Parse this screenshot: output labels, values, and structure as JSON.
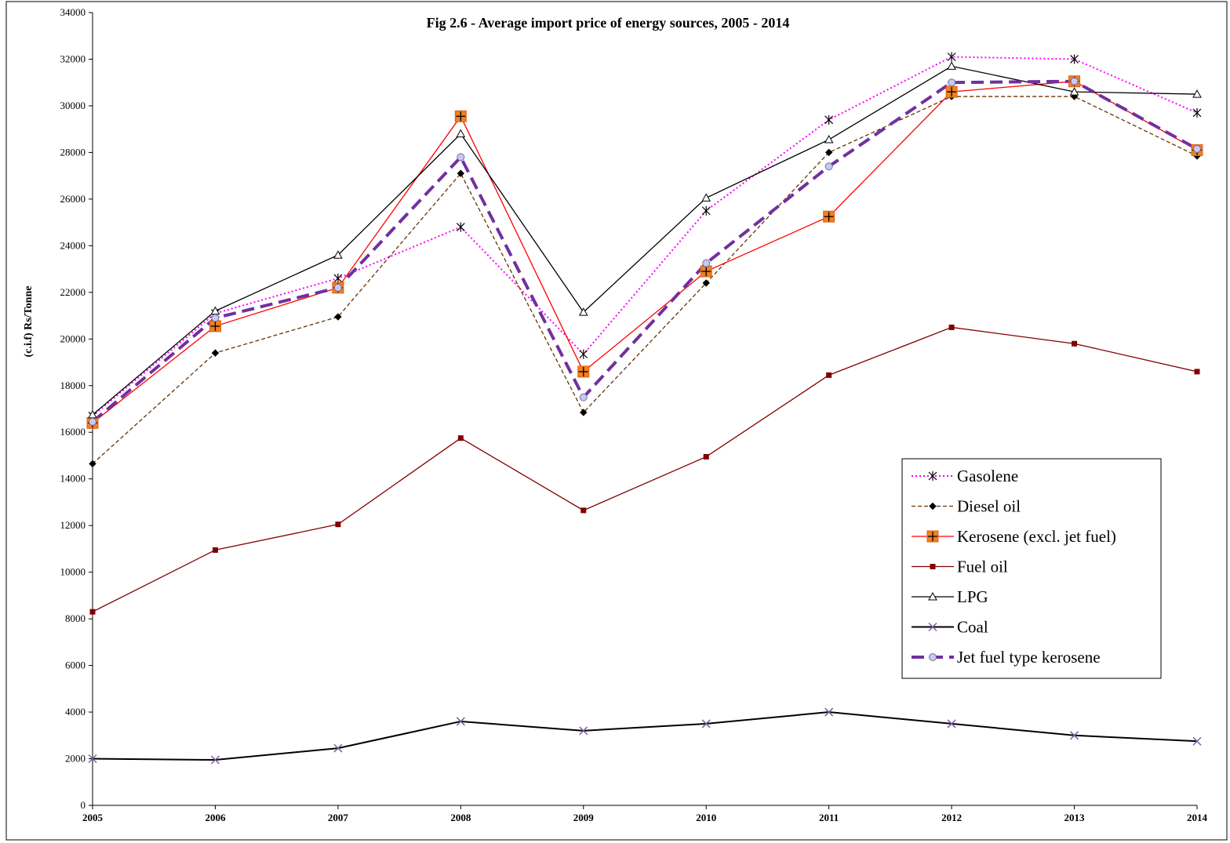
{
  "chart_data": {
    "type": "line",
    "title": "Fig 2.6 - Average import price of energy sources, 2005 - 2014",
    "xlabel": "",
    "ylabel": "(c.i.f) Rs/Tonne",
    "x": [
      "2005",
      "2006",
      "2007",
      "2008",
      "2009",
      "2010",
      "2011",
      "2012",
      "2013",
      "2014"
    ],
    "ylim": [
      0,
      34000
    ],
    "yticks": [
      0,
      2000,
      4000,
      6000,
      8000,
      10000,
      12000,
      14000,
      16000,
      18000,
      20000,
      22000,
      24000,
      26000,
      28000,
      30000,
      32000,
      34000
    ],
    "grid": false,
    "legend_position": "right",
    "series": [
      {
        "name": "Gasolene",
        "values": [
          16700,
          21100,
          22600,
          24800,
          19350,
          25500,
          29400,
          32100,
          32000,
          29700
        ],
        "color": "#ff00ff",
        "dash": "dotted",
        "marker": "asterisk"
      },
      {
        "name": "Diesel oil",
        "values": [
          14650,
          19400,
          20950,
          27100,
          16850,
          22400,
          28000,
          30400,
          30400,
          27850
        ],
        "color": "#663300",
        "dash": "dashed",
        "marker": "diamond"
      },
      {
        "name": "Kerosene (excl. jet fuel)",
        "values": [
          16400,
          20550,
          22200,
          29550,
          18600,
          22900,
          25250,
          30600,
          31050,
          28100
        ],
        "color": "#ff0000",
        "dash": "solid",
        "marker": "square-plus"
      },
      {
        "name": "Fuel oil",
        "values": [
          8300,
          10950,
          12050,
          15750,
          12650,
          14950,
          18450,
          20500,
          19800,
          18600
        ],
        "color": "#800000",
        "dash": "solid",
        "marker": "small-square"
      },
      {
        "name": "LPG",
        "values": [
          16750,
          21200,
          23600,
          28800,
          21150,
          26050,
          28550,
          31700,
          30600,
          30500
        ],
        "color": "#000000",
        "dash": "solid",
        "marker": "triangle"
      },
      {
        "name": "Coal",
        "values": [
          2000,
          1950,
          2450,
          3600,
          3200,
          3500,
          4000,
          3500,
          3000,
          2750
        ],
        "color": "#000000",
        "dash": "solid-thick",
        "marker": "x"
      },
      {
        "name": "Jet fuel type kerosene",
        "values": [
          16450,
          20900,
          22200,
          27800,
          17500,
          23250,
          27400,
          31000,
          31050,
          28150
        ],
        "color": "#7030a0",
        "dash": "long-dash",
        "marker": "circle"
      }
    ]
  }
}
